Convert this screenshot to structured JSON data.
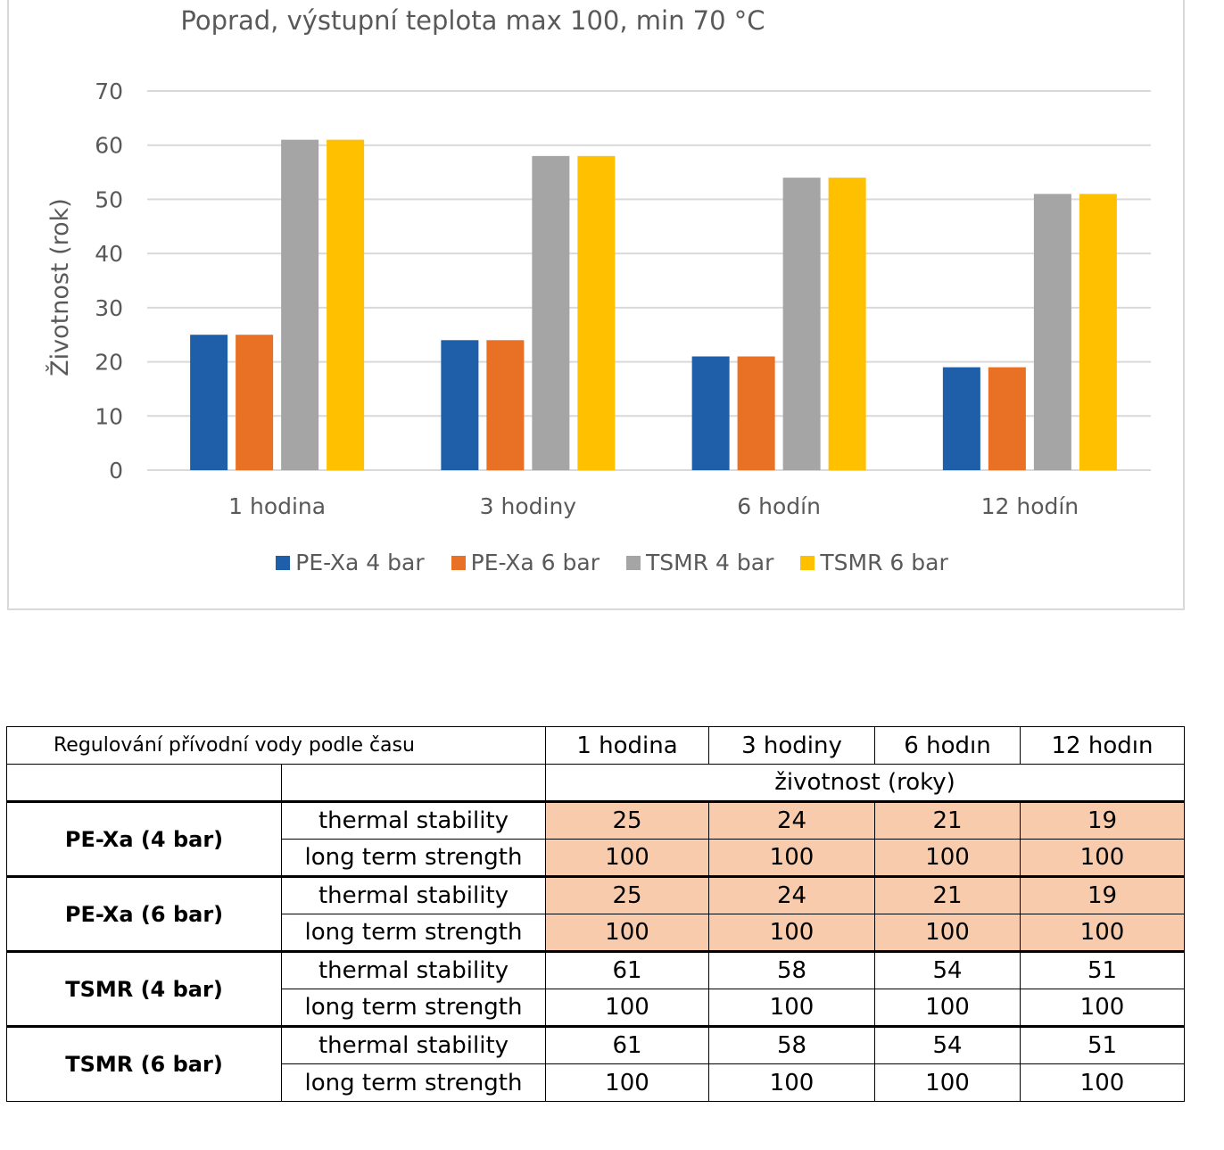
{
  "chart_data": {
    "type": "bar",
    "title": "Poprad, výstupní teplota max 100, min 70 °C",
    "ylabel": "Životnost (rok)",
    "xlabel": "",
    "ylim": [
      0,
      70
    ],
    "yticks": [
      0,
      10,
      20,
      30,
      40,
      50,
      60,
      70
    ],
    "grid": true,
    "legend_position": "bottom",
    "categories": [
      "1 hodina",
      "3 hodiny",
      "6 hodín",
      "12 hodín"
    ],
    "series": [
      {
        "name": "PE-Xa 4 bar",
        "color": "#1f5ea8",
        "values": [
          25,
          24,
          21,
          19
        ]
      },
      {
        "name": "PE-Xa 6 bar",
        "color": "#e87125",
        "values": [
          25,
          24,
          21,
          19
        ]
      },
      {
        "name": "TSMR 4 bar",
        "color": "#a5a5a5",
        "values": [
          61,
          58,
          54,
          51
        ]
      },
      {
        "name": "TSMR 6 bar",
        "color": "#ffc000",
        "values": [
          61,
          58,
          54,
          51
        ]
      }
    ]
  },
  "table": {
    "title": "Regulování přívodní vody podle času",
    "columns": [
      "1 hodina",
      "3 hodiny",
      "6 hodın",
      "12 hodın"
    ],
    "subheader": "životnost  (roky)",
    "highlight_color": "#f8cbad",
    "groups": [
      {
        "name": "PE-Xa (4 bar)",
        "rows": [
          {
            "label": "thermal stability",
            "values": [
              "25",
              "24",
              "21",
              "19"
            ]
          },
          {
            "label": "long term strength",
            "values": [
              "100",
              "100",
              "100",
              "100"
            ]
          }
        ]
      },
      {
        "name": "PE-Xa (6 bar)",
        "rows": [
          {
            "label": "thermal stability",
            "values": [
              "25",
              "24",
              "21",
              "19"
            ]
          },
          {
            "label": "long term strength",
            "values": [
              "100",
              "100",
              "100",
              "100"
            ]
          }
        ]
      },
      {
        "name": "TSMR (4 bar)",
        "rows": [
          {
            "label": "thermal stability",
            "values": [
              "61",
              "58",
              "54",
              "51"
            ]
          },
          {
            "label": "long term strength",
            "values": [
              "100",
              "100",
              "100",
              "100"
            ]
          }
        ]
      },
      {
        "name": "TSMR (6 bar)",
        "rows": [
          {
            "label": "thermal stability",
            "values": [
              "61",
              "58",
              "54",
              "51"
            ]
          },
          {
            "label": "long term strength",
            "values": [
              "100",
              "100",
              "100",
              "100"
            ]
          }
        ]
      }
    ]
  }
}
